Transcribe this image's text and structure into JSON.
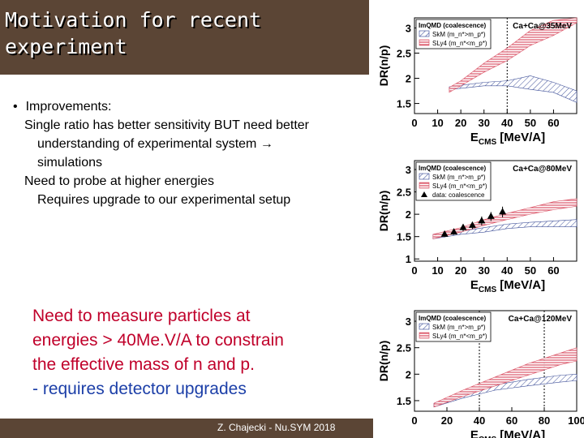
{
  "slide": {
    "title": "Motivation for recent\nexperiment",
    "bullet": "Improvements:",
    "lines": [
      "Single ratio has better sensitivity BUT need better",
      "understanding of experimental system →",
      "simulations",
      "Need to probe at higher energies",
      "Requires upgrade to our experimental setup"
    ],
    "note_red": [
      "Need to measure particles at",
      "energies > 40Me.V/A to constrain",
      "the effective mass of n and p."
    ],
    "note_blue": "- requires detector upgrades",
    "footer": "Z. Chajecki - Nu.SYM 2018"
  },
  "colors": {
    "brand": "#5b4535",
    "skm": "#2c3f8f",
    "sly4": "#d8465a",
    "note_red": "#c0002a",
    "note_blue": "#1c3fa8"
  },
  "chart_data": [
    {
      "type": "area",
      "title": "Ca+Ca@35MeV",
      "ylabel": "DR(n/p)",
      "xlabel": "E_CMS [MeV/A]",
      "xticks": [
        "0",
        "10",
        "20",
        "30",
        "40",
        "50",
        "60"
      ],
      "yticks": [
        "1.5",
        "2",
        "2.5",
        "3"
      ],
      "xlim": [
        0,
        70
      ],
      "ylim": [
        1.3,
        3.2
      ],
      "cut_line": 40,
      "legend": {
        "header": "ImQMD (coalescence)",
        "entries": [
          "SkM (m_n*>m_p*)",
          "SLy4 (m_n*<m_p*)"
        ],
        "position": "top-left"
      },
      "series": [
        {
          "name": "SkM (m_n*>m_p*)",
          "x": [
            15,
            20,
            30,
            40,
            50,
            60,
            70
          ],
          "low": [
            1.78,
            1.8,
            1.85,
            1.85,
            1.78,
            1.72,
            1.52
          ],
          "high": [
            1.83,
            1.86,
            1.92,
            1.95,
            2.05,
            1.92,
            1.75
          ]
        },
        {
          "name": "SLy4 (m_n*<m_p*)",
          "x": [
            15,
            20,
            30,
            40,
            50,
            60,
            70
          ],
          "low": [
            1.72,
            1.85,
            2.12,
            2.35,
            2.65,
            2.85,
            3.1
          ],
          "high": [
            1.82,
            1.95,
            2.3,
            2.6,
            2.95,
            3.15,
            3.2
          ]
        }
      ]
    },
    {
      "type": "area",
      "title": "Ca+Ca@80MeV",
      "ylabel": "DR(n/p)",
      "xlabel": "E_CMS [MeV/A]",
      "xticks": [
        "0",
        "10",
        "20",
        "30",
        "40",
        "50",
        "60"
      ],
      "yticks": [
        "1",
        "1.5",
        "2",
        "2.5",
        "3"
      ],
      "xlim": [
        0,
        70
      ],
      "ylim": [
        0.95,
        3.2
      ],
      "legend": {
        "header": "ImQMD (coalescence)",
        "entries": [
          "SkM (m_n*>m_p*)",
          "SLy4 (m_n*<m_p*)",
          "data: coalescence"
        ],
        "position": "top-left"
      },
      "series": [
        {
          "name": "SkM (m_n*>m_p*)",
          "x": [
            8,
            20,
            30,
            40,
            50,
            60,
            70
          ],
          "low": [
            1.45,
            1.55,
            1.6,
            1.68,
            1.72,
            1.72,
            1.72
          ],
          "high": [
            1.55,
            1.62,
            1.7,
            1.78,
            1.82,
            1.85,
            1.88
          ]
        },
        {
          "name": "SLy4 (m_n*<m_p*)",
          "x": [
            8,
            20,
            30,
            40,
            50,
            60,
            70
          ],
          "low": [
            1.45,
            1.6,
            1.75,
            1.88,
            2.0,
            2.1,
            2.18
          ],
          "high": [
            1.55,
            1.7,
            1.88,
            2.02,
            2.15,
            2.28,
            2.35
          ]
        },
        {
          "name": "data: coalescence",
          "x": [
            13,
            17,
            21,
            25,
            29,
            33,
            38
          ],
          "y": [
            1.55,
            1.6,
            1.7,
            1.75,
            1.85,
            1.95,
            2.05
          ],
          "err": [
            0.06,
            0.06,
            0.08,
            0.08,
            0.1,
            0.1,
            0.12
          ]
        }
      ]
    },
    {
      "type": "area",
      "title": "Ca+Ca@120MeV",
      "ylabel": "DR(n/p)",
      "xlabel": "E_CMS [MeV/A]",
      "xticks": [
        "0",
        "20",
        "40",
        "60",
        "80",
        "100"
      ],
      "yticks": [
        "1.5",
        "2",
        "2.5",
        "3"
      ],
      "xlim": [
        0,
        100
      ],
      "ylim": [
        1.3,
        3.2
      ],
      "cut_lines": [
        40,
        80
      ],
      "legend": {
        "header": "ImQMD (coalescence)",
        "entries": [
          "SkM (m_n*>m_p*)",
          "SLy4 (m_n*<m_p*)"
        ],
        "position": "top-left"
      },
      "series": [
        {
          "name": "SkM (m_n*>m_p*)",
          "x": [
            12,
            30,
            50,
            70,
            90,
            100
          ],
          "low": [
            1.38,
            1.55,
            1.7,
            1.78,
            1.85,
            1.88
          ],
          "high": [
            1.45,
            1.62,
            1.8,
            1.9,
            1.98,
            2.0
          ]
        },
        {
          "name": "SLy4 (m_n*<m_p*)",
          "x": [
            12,
            30,
            50,
            70,
            90,
            100
          ],
          "low": [
            1.38,
            1.58,
            1.78,
            1.98,
            2.18,
            2.25
          ],
          "high": [
            1.45,
            1.7,
            1.95,
            2.2,
            2.4,
            2.5
          ]
        }
      ]
    }
  ]
}
